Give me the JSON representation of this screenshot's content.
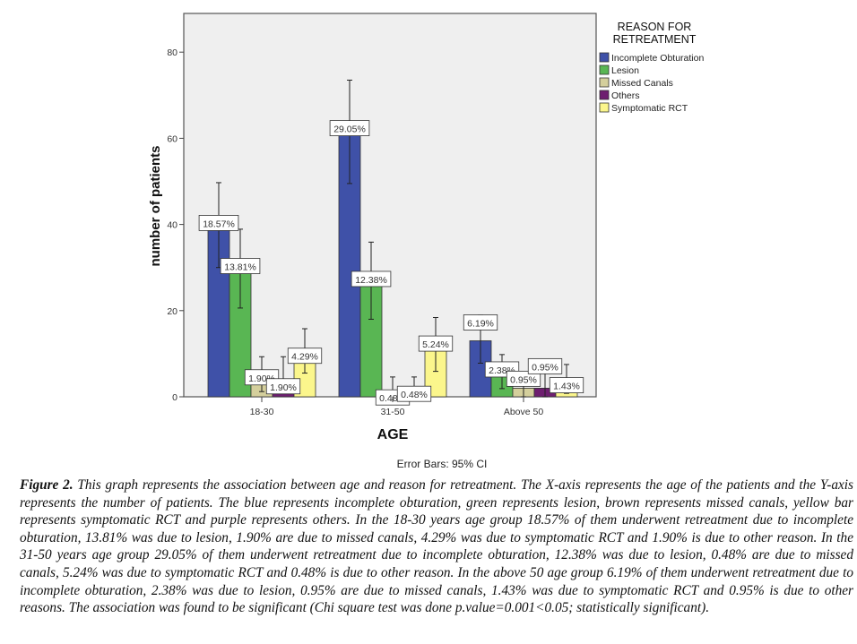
{
  "chart_data": {
    "type": "bar",
    "xlabel": "AGE",
    "ylabel": "number of patients",
    "ylim": [
      0,
      88
    ],
    "yticks": [
      0,
      20,
      40,
      60,
      80
    ],
    "grid": false,
    "categories": [
      "18-30",
      "31-50",
      "Above 50"
    ],
    "legend": {
      "title_line1": "REASON FOR",
      "title_line2": "RETREATMENT",
      "placement": "right"
    },
    "footnote": "Error Bars: 95% CI",
    "series": [
      {
        "name": "Incomplete Obturation",
        "color": "#3f51a8",
        "values": [
          39,
          61,
          13
        ],
        "labels": [
          "18.57%",
          "29.05%",
          "6.19%"
        ],
        "ci": [
          [
            30,
            49.7
          ],
          [
            49.5,
            73.5
          ],
          [
            7.8,
            19
          ]
        ]
      },
      {
        "name": "Lesion",
        "color": "#59b653",
        "values": [
          29,
          26,
          5
        ],
        "labels": [
          "13.81%",
          "12.38%",
          "2.38%"
        ],
        "ci": [
          [
            20.6,
            38.9
          ],
          [
            18,
            35.9
          ],
          [
            1.9,
            9.8
          ]
        ]
      },
      {
        "name": "Missed Canals",
        "color": "#d4cf9c",
        "values": [
          4,
          1,
          2
        ],
        "labels": [
          "1.90%",
          "0.48%",
          "0.95%"
        ],
        "ci": [
          [
            1.2,
            9.3
          ],
          [
            0,
            4.6
          ],
          [
            0,
            5.9
          ]
        ]
      },
      {
        "name": "Others",
        "color": "#6e1f70",
        "values": [
          4,
          1,
          2
        ],
        "labels": [
          "1.90%",
          "0.48%",
          "0.95%"
        ],
        "ci": [
          [
            1.2,
            9.3
          ],
          [
            0,
            4.6
          ],
          [
            0,
            5.9
          ]
        ]
      },
      {
        "name": "Symptomatic RCT",
        "color": "#fbf68c",
        "values": [
          9,
          11,
          3
        ],
        "labels": [
          "4.29%",
          "5.24%",
          "1.43%"
        ],
        "ci": [
          [
            5.5,
            15.8
          ],
          [
            5.9,
            18.4
          ],
          [
            0.8,
            7.5
          ]
        ]
      }
    ]
  },
  "caption": {
    "label": "Figure 2.",
    "text": " This graph represents the association between age and reason for retreatment. The X-axis represents the age of the patients and the Y-axis represents the number of patients. The blue represents incomplete obturation, green represents lesion, brown represents missed canals, yellow bar represents symptomatic RCT and purple represents others. In the 18-30 years age group 18.57% of them underwent retreatment due to incomplete obturation, 13.81% was due to lesion, 1.90% are due to missed canals, 4.29% was due to symptomatic RCT and 1.90% is due to other reason. In the 31-50 years age group 29.05% of them underwent retreatment due to incomplete obturation, 12.38% was due to lesion, 0.48% are due to missed canals, 5.24% was due to symptomatic RCT and 0.48% is due to other reason. In the above 50 age group 6.19% of them underwent retreatment due to incomplete obturation, 2.38% was due to lesion, 0.95% are due to missed canals, 1.43% was due to symptomatic RCT and 0.95% is due to other reasons. The association was found to be significant (Chi square test was done p.value=0.001<0.05; statistically significant)."
  }
}
